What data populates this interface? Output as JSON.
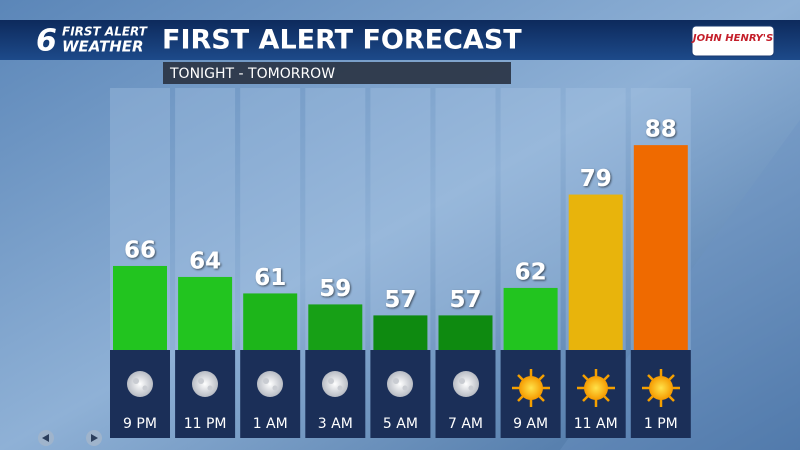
{
  "header": {
    "logo_number": "6",
    "logo_line1": "FIRST ALERT",
    "logo_line2": "WEATHER",
    "sponsor": "JOHN HENRY'S"
  },
  "chart_data": {
    "type": "bar",
    "title": "FIRST ALERT FORECAST",
    "subtitle": "TONIGHT - TOMORROW",
    "categories": [
      "9 PM",
      "11 PM",
      "1 AM",
      "3 AM",
      "5 AM",
      "7 AM",
      "9 AM",
      "11 AM",
      "1 PM"
    ],
    "values": [
      66,
      64,
      61,
      59,
      57,
      57,
      62,
      79,
      88
    ],
    "colors": [
      "#22c41f",
      "#22c41f",
      "#1db51a",
      "#17a016",
      "#0e8a10",
      "#0e8a10",
      "#22c41f",
      "#e8b40c",
      "#ef6a00"
    ],
    "ylim": [
      50.7,
      98.4
    ]
  }
}
